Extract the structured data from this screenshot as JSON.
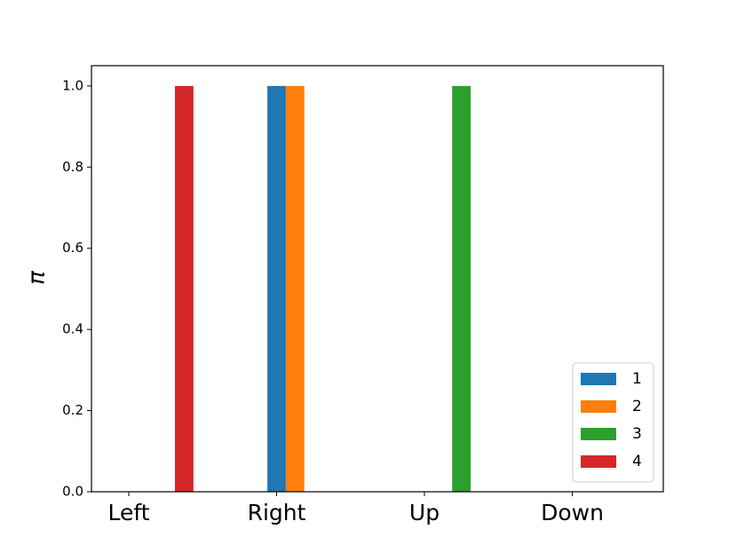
{
  "chart_data": {
    "type": "bar",
    "y_label": "π",
    "categories": [
      "Left",
      "Right",
      "Up",
      "Down"
    ],
    "series": [
      {
        "name": "1",
        "color": "#1f77b4",
        "values": [
          0,
          1,
          0,
          0
        ]
      },
      {
        "name": "2",
        "color": "#ff7f0e",
        "values": [
          0,
          1,
          0,
          0
        ]
      },
      {
        "name": "3",
        "color": "#2ca02c",
        "values": [
          0,
          0,
          1,
          0
        ]
      },
      {
        "name": "4",
        "color": "#d62728",
        "values": [
          1,
          0,
          0,
          0
        ]
      }
    ],
    "ylim": [
      0,
      1.05
    ],
    "yticks": [
      {
        "value": 0,
        "label": "0.0"
      },
      {
        "value": 0.2,
        "label": "0.2"
      },
      {
        "value": 0.4,
        "label": "0.4"
      },
      {
        "value": 0.6,
        "label": "0.6"
      },
      {
        "value": 0.8,
        "label": "0.8"
      },
      {
        "value": 1,
        "label": "1.0"
      }
    ],
    "legend": "lower right"
  }
}
